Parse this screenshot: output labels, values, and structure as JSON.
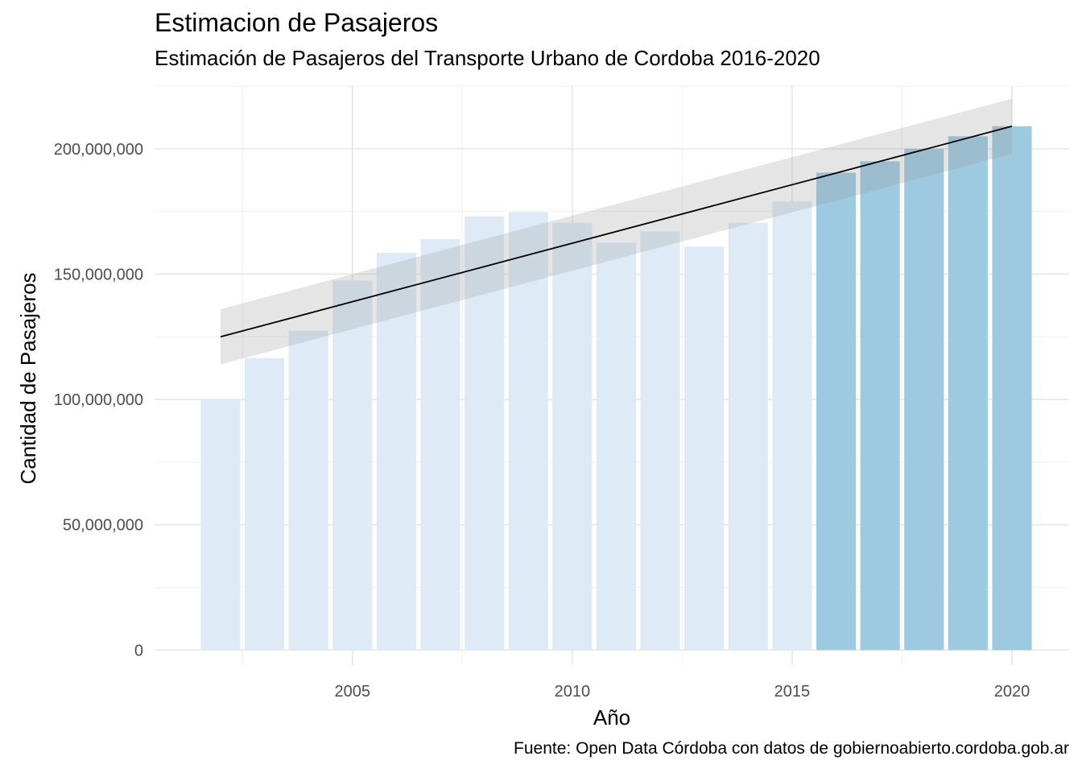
{
  "chart_data": {
    "type": "bar",
    "title": "Estimacion de Pasajeros",
    "subtitle": "Estimación de Pasajeros del Transporte Urbano de Cordoba 2016-2020",
    "caption": "Fuente: Open Data Córdoba con datos de gobiernoabierto.cordoba.gob.ar",
    "xlabel": "Año",
    "ylabel": "Cantidad de Pasajeros",
    "xlim": [
      2000.5,
      2021.3
    ],
    "ylim": [
      -6000000,
      225000000
    ],
    "x_ticks": [
      2005,
      2010,
      2015,
      2020
    ],
    "x_tick_labels": [
      "2005",
      "2010",
      "2015",
      "2020"
    ],
    "y_ticks": [
      0,
      50000000,
      100000000,
      150000000,
      200000000
    ],
    "y_tick_labels": [
      "0",
      "50,000,000",
      "100,000,000",
      "150,000,000",
      "200,000,000"
    ],
    "grid": true,
    "series": [
      {
        "name": "Pasajeros",
        "x": [
          2002,
          2003,
          2004,
          2005,
          2006,
          2007,
          2008,
          2009,
          2010,
          2011,
          2012,
          2013,
          2014,
          2015,
          2016,
          2017,
          2018,
          2019,
          2020
        ],
        "values": [
          100000000,
          116500000,
          127500000,
          147500000,
          158500000,
          164000000,
          173000000,
          174700000,
          170500000,
          162500000,
          167000000,
          161000000,
          170500000,
          179000000,
          190500000,
          195000000,
          200000000,
          205000000,
          209000000
        ],
        "colors": [
          "#deebf7",
          "#deebf7",
          "#deebf7",
          "#deebf7",
          "#deebf7",
          "#deebf7",
          "#deebf7",
          "#deebf7",
          "#deebf7",
          "#deebf7",
          "#deebf7",
          "#deebf7",
          "#deebf7",
          "#deebf7",
          "#9ecae1",
          "#9ecae1",
          "#9ecae1",
          "#9ecae1",
          "#9ecae1"
        ]
      }
    ],
    "trend": {
      "method": "linear",
      "x": [
        2002,
        2020
      ],
      "fit": [
        125000000,
        209000000
      ],
      "lower": [
        114000000,
        198000000
      ],
      "upper": [
        136000000,
        220000000
      ],
      "line_color": "#000000",
      "band_color": "#999999"
    }
  }
}
